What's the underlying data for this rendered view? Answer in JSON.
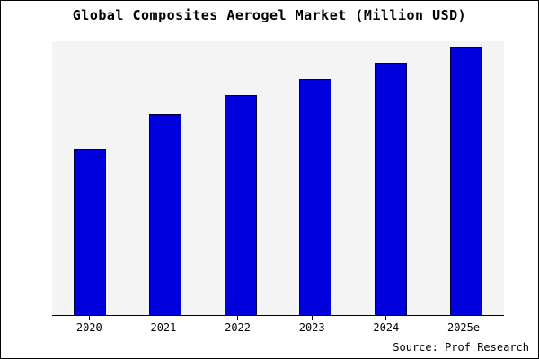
{
  "chart_data": {
    "type": "bar",
    "title": "Global Composites Aerogel Market (Million USD)",
    "categories": [
      "2020",
      "2021",
      "2022",
      "2023",
      "2024",
      "2025e"
    ],
    "values": [
      62,
      75,
      82,
      88,
      94,
      100
    ],
    "xlabel": "",
    "ylabel": "",
    "ylim": [
      0,
      102
    ],
    "grid": false,
    "legend": false,
    "bar_color": "#0000dd",
    "bar_border_color": "#000033",
    "plot_background": "#f4f4f4"
  },
  "source": "Source: Prof Research"
}
